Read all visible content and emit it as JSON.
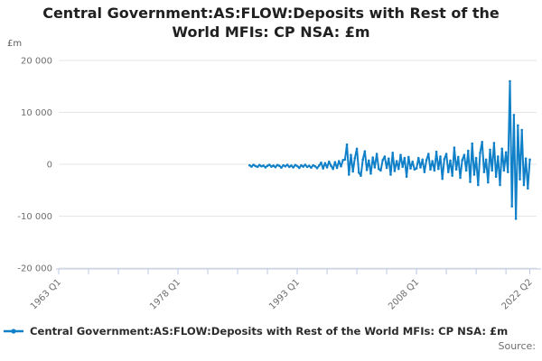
{
  "page": {
    "source_label": "Source:"
  },
  "chart_data": {
    "type": "line",
    "title": "Central Government:AS:FLOW:Deposits with Rest of the World MFIs: CP NSA: £m",
    "ylabel": "£m",
    "xlabel": "",
    "legend_position": "bottom-left",
    "grid": "horizontal-only",
    "colors": {
      "line": "#1080C8",
      "grid": "#E5E5E5",
      "axis": "#BCC9E2",
      "tick_text": "#6E6E6E",
      "title_text": "#202020",
      "legend_text": "#2B2B2B",
      "source_text": "#6E6E6E",
      "background": "#FFFFFF"
    },
    "y_axis": {
      "min": -20000,
      "max": 20000,
      "ticks": [
        {
          "value": 20000,
          "label": "20 000"
        },
        {
          "value": 10000,
          "label": "10 000"
        },
        {
          "value": 0,
          "label": "0"
        },
        {
          "value": -10000,
          "label": "-10 000"
        },
        {
          "value": -20000,
          "label": "-20 000"
        }
      ]
    },
    "x_axis": {
      "min_year": 1963.0,
      "max_year": 2023.1,
      "minor_tick_step_years": 3.75,
      "labeled_ticks": [
        {
          "year": 1963.0,
          "label": "1963 Q1"
        },
        {
          "year": 1978.0,
          "label": "1978 Q1"
        },
        {
          "year": 1993.0,
          "label": "1993 Q1"
        },
        {
          "year": 2008.0,
          "label": "2008 Q1"
        },
        {
          "year": 2022.25,
          "label": "2022 Q2"
        }
      ]
    },
    "series": [
      {
        "name": "Central Government:AS:FLOW:Deposits with Rest of the World MFIs: CP NSA: £m",
        "start_year": 1987,
        "start_quarter": 1,
        "frequency": "quarterly",
        "end_label": "2022 Q2",
        "values": [
          -200,
          -450,
          -100,
          -350,
          -500,
          -150,
          -400,
          -250,
          -600,
          -300,
          -100,
          -450,
          -250,
          -550,
          -150,
          -300,
          -650,
          -200,
          -400,
          -100,
          -500,
          -250,
          -600,
          -150,
          -350,
          -700,
          -200,
          -450,
          -100,
          -500,
          -300,
          -650,
          -200,
          -400,
          -750,
          -250,
          300,
          -800,
          200,
          -600,
          500,
          -300,
          -900,
          400,
          -700,
          600,
          -400,
          800,
          900,
          3800,
          -2000,
          1800,
          -1400,
          1200,
          3000,
          -1600,
          -2200,
          900,
          2500,
          -1100,
          700,
          -1800,
          1300,
          -600,
          2000,
          -900,
          -1200,
          800,
          1500,
          -700,
          1100,
          -2000,
          2200,
          -1300,
          600,
          -900,
          1800,
          -500,
          1200,
          -2400,
          1400,
          -800,
          500,
          -1000,
          -800,
          1200,
          -600,
          900,
          -1500,
          800,
          2000,
          -1000,
          600,
          -1200,
          2400,
          -900,
          1500,
          -2800,
          1000,
          2000,
          -1500,
          700,
          -2200,
          3200,
          -1000,
          1400,
          -2600,
          800,
          1800,
          -1200,
          2600,
          -3400,
          4000,
          -2000,
          1200,
          -4000,
          2200,
          4300,
          -1500,
          900,
          -3500,
          2800,
          -1200,
          4100,
          -2400,
          1500,
          -4000,
          3000,
          -1200,
          2300,
          -1500,
          16000,
          -8100,
          9500,
          -10500,
          7500,
          -2900,
          6600,
          -4000,
          1100,
          -4650,
          900
        ]
      }
    ]
  }
}
